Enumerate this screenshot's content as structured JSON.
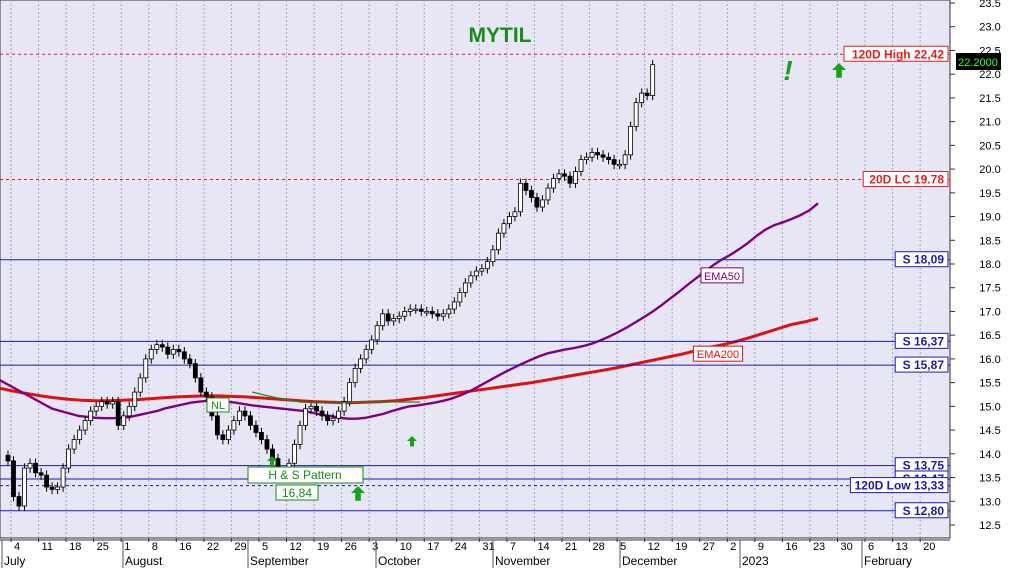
{
  "chart_data": {
    "type": "candlestick",
    "title": "MYTIL",
    "colors": {
      "plot_bg": "#e6e6f5",
      "grid": "#a8a8bd",
      "title": "#1a8a1a",
      "support": "#1a1ab0",
      "resistance": "#e02020",
      "ema50": "#800080",
      "ema200": "#dd1111",
      "pattern": "#1a8a1a",
      "arrow": "#1aa01a",
      "price_box": "#000000",
      "price_text": "#33ff33"
    },
    "y_ticks": [
      "12.5",
      "13.0",
      "13.5",
      "14.0",
      "14.5",
      "15.0",
      "15.5",
      "16.0",
      "16.5",
      "17.0",
      "17.5",
      "18.0",
      "18.5",
      "19.0",
      "19.5",
      "20.0",
      "20.5",
      "21.0",
      "21.5",
      "22.0",
      "22.5",
      "23.0",
      "23.5"
    ],
    "ylim": [
      12.5,
      23.5
    ],
    "x_day_labels": [
      "4",
      "11",
      "18",
      "25",
      "1",
      "8",
      "16",
      "22",
      "29",
      "5",
      "12",
      "19",
      "26",
      "3",
      "10",
      "17",
      "24",
      "31",
      "7",
      "14",
      "21",
      "28",
      "5",
      "12",
      "19",
      "27",
      "2",
      "9",
      "16",
      "23",
      "30",
      "6",
      "13",
      "20"
    ],
    "x_month_labels": [
      "July",
      "August",
      "September",
      "October",
      "November",
      "December",
      "2023",
      "February"
    ],
    "last_price": "22.2000",
    "horizontal_levels": [
      {
        "label": "120D High 22,42",
        "value": 22.42,
        "style": "resistance"
      },
      {
        "label": "20D LC 19.78",
        "value": 19.78,
        "style": "resistance"
      },
      {
        "label": "S 18,09",
        "value": 18.09,
        "style": "support"
      },
      {
        "label": "S 16,37",
        "value": 16.37,
        "style": "support"
      },
      {
        "label": "S 15,87",
        "value": 15.87,
        "style": "support"
      },
      {
        "label": "S 13,75",
        "value": 13.75,
        "style": "support"
      },
      {
        "label": "S 13,47",
        "value": 13.47,
        "style": "support"
      },
      {
        "label": "120D Low 13,33",
        "value": 13.33,
        "style": "support_dashed"
      },
      {
        "label": "S 12,80",
        "value": 12.8,
        "style": "support"
      }
    ],
    "indicators": [
      {
        "name": "EMA50",
        "value_at_label": 17.75
      },
      {
        "name": "EMA200",
        "value_at_label": 16.1
      }
    ],
    "annotations": {
      "nl": "NL",
      "pattern": "H & S Pattern",
      "target": "16,84",
      "exclamation": "!"
    },
    "closes": [
      13.85,
      13.1,
      12.9,
      13.7,
      13.8,
      13.6,
      13.55,
      13.3,
      13.25,
      13.3,
      13.7,
      14.1,
      14.3,
      14.5,
      14.7,
      14.9,
      15.0,
      15.1,
      15.05,
      15.1,
      14.6,
      14.8,
      15.0,
      15.3,
      15.6,
      16.0,
      16.2,
      16.3,
      16.25,
      16.1,
      16.2,
      16.15,
      16.0,
      15.9,
      15.6,
      15.3,
      15.2,
      14.8,
      14.4,
      14.3,
      14.5,
      14.7,
      14.9,
      14.8,
      14.6,
      14.45,
      14.3,
      14.1,
      13.9,
      13.6,
      13.55,
      13.8,
      14.2,
      14.6,
      14.95,
      15.0,
      14.9,
      14.8,
      14.7,
      14.75,
      14.9,
      15.1,
      15.5,
      15.8,
      16.0,
      16.2,
      16.4,
      16.7,
      16.95,
      16.8,
      16.85,
      16.9,
      17.0,
      17.05,
      17.05,
      17.0,
      17.0,
      16.95,
      16.9,
      16.95,
      17.05,
      17.2,
      17.4,
      17.6,
      17.75,
      17.85,
      17.9,
      18.05,
      18.3,
      18.65,
      18.85,
      19.0,
      19.1,
      19.7,
      19.55,
      19.4,
      19.2,
      19.35,
      19.6,
      19.8,
      19.9,
      19.85,
      19.7,
      19.95,
      20.2,
      20.25,
      20.35,
      20.3,
      20.25,
      20.2,
      20.1,
      20.1,
      20.3,
      20.9,
      21.4,
      21.6,
      21.55,
      22.2
    ],
    "ema50": [
      15.55,
      15.45,
      15.35,
      15.25,
      15.15,
      15.05,
      14.95,
      14.9,
      14.85,
      14.8,
      14.78,
      14.76,
      14.75,
      14.75,
      14.76,
      14.78,
      14.82,
      14.86,
      14.9,
      14.96,
      15.0,
      15.04,
      15.08,
      15.1,
      15.12,
      15.12,
      15.1,
      15.08,
      15.05,
      15.02,
      15.0,
      14.98,
      14.96,
      14.94,
      14.92,
      14.9,
      14.86,
      14.82,
      14.8,
      14.76,
      14.74,
      14.74,
      14.76,
      14.8,
      14.84,
      14.9,
      14.95,
      15.0,
      15.02,
      15.05,
      15.08,
      15.12,
      15.17,
      15.24,
      15.32,
      15.42,
      15.52,
      15.62,
      15.72,
      15.81,
      15.9,
      15.98,
      16.06,
      16.12,
      16.16,
      16.2,
      16.23,
      16.27,
      16.32,
      16.39,
      16.47,
      16.56,
      16.66,
      16.77,
      16.88,
      17.0,
      17.13,
      17.27,
      17.41,
      17.56,
      17.7,
      17.84,
      17.98,
      18.1,
      18.2,
      18.32,
      18.45,
      18.6,
      18.73,
      18.82,
      18.88,
      18.95,
      19.03,
      19.13,
      19.28
    ],
    "ema200": [
      15.38,
      15.32,
      15.27,
      15.22,
      15.18,
      15.15,
      15.13,
      15.12,
      15.12,
      15.13,
      15.14,
      15.16,
      15.18,
      15.2,
      15.21,
      15.22,
      15.22,
      15.21,
      15.2,
      15.18,
      15.16,
      15.14,
      15.12,
      15.1,
      15.09,
      15.08,
      15.08,
      15.09,
      15.1,
      15.12,
      15.15,
      15.18,
      15.22,
      15.26,
      15.3,
      15.34,
      15.38,
      15.42,
      15.46,
      15.5,
      15.55,
      15.6,
      15.65,
      15.7,
      15.75,
      15.8,
      15.86,
      15.92,
      15.98,
      16.04,
      16.1,
      16.17,
      16.24,
      16.3,
      16.37,
      16.45,
      16.54,
      16.63,
      16.72,
      16.78,
      16.85
    ]
  }
}
